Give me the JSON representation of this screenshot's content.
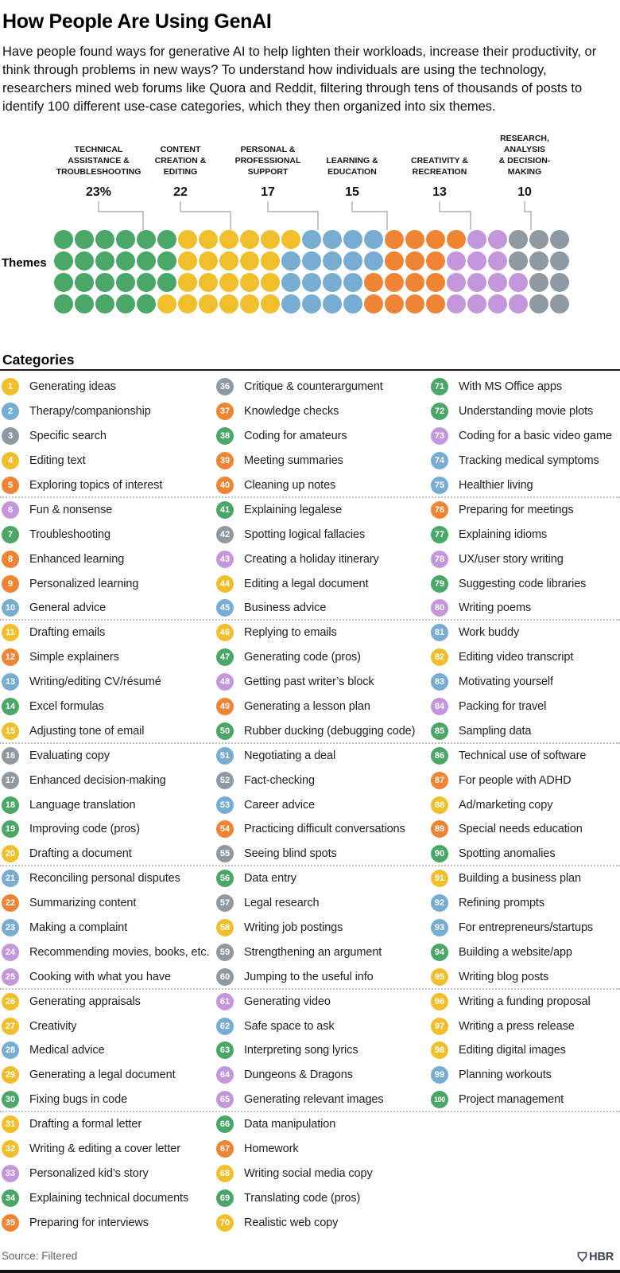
{
  "header": {
    "title": "How People Are Using GenAI",
    "intro": "Have people found ways for generative AI to help lighten their workloads, increase their productivity, or think through problems in new ways? To understand how individuals are using the technology, researchers mined web forums like Quora and Reddit, filtering through tens of thousands of posts to identify 100 different use-case categories, which they then organized into six themes."
  },
  "chart_data": {
    "type": "pie",
    "representation": "100-unit waffle dot grid (4 rows x 25 columns), one dot per use-case category",
    "title": "How People Are Using GenAI",
    "grid_label": "Themes",
    "unit_total": 100,
    "themes": [
      {
        "name": "Technical Assistance & Troubleshooting",
        "lines": [
          "TECHNICAL",
          "ASSISTANCE &",
          "TROUBLESHOOTING"
        ],
        "value": 23,
        "value_label": "23%",
        "color": "#4AA768",
        "color_key": "g"
      },
      {
        "name": "Content Creation & Editing",
        "lines": [
          "CONTENT",
          "CREATION &",
          "EDITING"
        ],
        "value": 22,
        "value_label": "22",
        "color": "#F2BF2C",
        "color_key": "y"
      },
      {
        "name": "Personal & Professional Support",
        "lines": [
          "PERSONAL &",
          "PROFESSIONAL",
          "SUPPORT"
        ],
        "value": 17,
        "value_label": "17",
        "color": "#77ADD3",
        "color_key": "b"
      },
      {
        "name": "Learning & Education",
        "lines": [
          "LEARNING &",
          "EDUCATION"
        ],
        "value": 15,
        "value_label": "15",
        "color": "#EE8434",
        "color_key": "o"
      },
      {
        "name": "Creativity & Recreation",
        "lines": [
          "CREATIVITY &",
          "RECREATION"
        ],
        "value": 13,
        "value_label": "13",
        "color": "#C496DB",
        "color_key": "p"
      },
      {
        "name": "Research, Analysis & Decision-Making",
        "lines": [
          "RESEARCH,",
          "ANALYSIS",
          "& DECISION-",
          "MAKING"
        ],
        "value": 10,
        "value_label": "10",
        "color": "#8F99A1",
        "color_key": "s"
      }
    ],
    "dot_rows": [
      "ggggggyyyyyybbbbooooppsss",
      "ggggggyyyyybbbbbooopppsss",
      "ggggggyyyyybbbbooooppppss",
      "gggggyyyyyybbbbooooppppss"
    ]
  },
  "categories_section": {
    "heading": "Categories",
    "column_sizes": [
      35,
      35,
      30
    ],
    "items": [
      {
        "n": 1,
        "label": "Generating ideas",
        "k": "y"
      },
      {
        "n": 2,
        "label": "Therapy/companionship",
        "k": "b"
      },
      {
        "n": 3,
        "label": "Specific search",
        "k": "s"
      },
      {
        "n": 4,
        "label": "Editing text",
        "k": "y"
      },
      {
        "n": 5,
        "label": "Exploring topics of interest",
        "k": "o"
      },
      {
        "n": 6,
        "label": "Fun & nonsense",
        "k": "p"
      },
      {
        "n": 7,
        "label": "Troubleshooting",
        "k": "g"
      },
      {
        "n": 8,
        "label": "Enhanced learning",
        "k": "o"
      },
      {
        "n": 9,
        "label": "Personalized learning",
        "k": "o"
      },
      {
        "n": 10,
        "label": "General advice",
        "k": "b"
      },
      {
        "n": 11,
        "label": "Drafting emails",
        "k": "y"
      },
      {
        "n": 12,
        "label": "Simple explainers",
        "k": "o"
      },
      {
        "n": 13,
        "label": "Writing/editing CV/résumé",
        "k": "b"
      },
      {
        "n": 14,
        "label": "Excel formulas",
        "k": "g"
      },
      {
        "n": 15,
        "label": "Adjusting tone of email",
        "k": "y"
      },
      {
        "n": 16,
        "label": "Evaluating copy",
        "k": "s"
      },
      {
        "n": 17,
        "label": "Enhanced decision-making",
        "k": "s"
      },
      {
        "n": 18,
        "label": "Language translation",
        "k": "g"
      },
      {
        "n": 19,
        "label": "Improving code (pros)",
        "k": "g"
      },
      {
        "n": 20,
        "label": "Drafting a document",
        "k": "y"
      },
      {
        "n": 21,
        "label": "Reconciling personal disputes",
        "k": "b"
      },
      {
        "n": 22,
        "label": "Summarizing content",
        "k": "o"
      },
      {
        "n": 23,
        "label": "Making a complaint",
        "k": "b"
      },
      {
        "n": 24,
        "label": "Recommending movies, books, etc.",
        "k": "p"
      },
      {
        "n": 25,
        "label": "Cooking with what you have",
        "k": "p"
      },
      {
        "n": 26,
        "label": "Generating appraisals",
        "k": "y"
      },
      {
        "n": 27,
        "label": "Creativity",
        "k": "y"
      },
      {
        "n": 28,
        "label": "Medical advice",
        "k": "b"
      },
      {
        "n": 29,
        "label": "Generating a legal document",
        "k": "y"
      },
      {
        "n": 30,
        "label": "Fixing bugs in code",
        "k": "g"
      },
      {
        "n": 31,
        "label": "Drafting a formal letter",
        "k": "y"
      },
      {
        "n": 32,
        "label": "Writing & editing a cover letter",
        "k": "y"
      },
      {
        "n": 33,
        "label": "Personalized kid’s story",
        "k": "p"
      },
      {
        "n": 34,
        "label": "Explaining technical documents",
        "k": "g"
      },
      {
        "n": 35,
        "label": "Preparing for interviews",
        "k": "o"
      },
      {
        "n": 36,
        "label": "Critique & counterargument",
        "k": "s"
      },
      {
        "n": 37,
        "label": "Knowledge checks",
        "k": "o"
      },
      {
        "n": 38,
        "label": "Coding for amateurs",
        "k": "g"
      },
      {
        "n": 39,
        "label": "Meeting summaries",
        "k": "o"
      },
      {
        "n": 40,
        "label": "Cleaning up notes",
        "k": "o"
      },
      {
        "n": 41,
        "label": "Explaining legalese",
        "k": "g"
      },
      {
        "n": 42,
        "label": "Spotting logical fallacies",
        "k": "s"
      },
      {
        "n": 43,
        "label": "Creating a holiday itinerary",
        "k": "p"
      },
      {
        "n": 44,
        "label": "Editing a legal document",
        "k": "y"
      },
      {
        "n": 45,
        "label": "Business advice",
        "k": "b"
      },
      {
        "n": 46,
        "label": "Replying to emails",
        "k": "y"
      },
      {
        "n": 47,
        "label": "Generating code (pros)",
        "k": "g"
      },
      {
        "n": 48,
        "label": "Getting past writer’s block",
        "k": "p"
      },
      {
        "n": 49,
        "label": "Generating a lesson plan",
        "k": "o"
      },
      {
        "n": 50,
        "label": "Rubber ducking (debugging code)",
        "k": "g"
      },
      {
        "n": 51,
        "label": "Negotiating a deal",
        "k": "b"
      },
      {
        "n": 52,
        "label": "Fact-checking",
        "k": "s"
      },
      {
        "n": 53,
        "label": "Career advice",
        "k": "b"
      },
      {
        "n": 54,
        "label": "Practicing difficult conversations",
        "k": "o"
      },
      {
        "n": 55,
        "label": "Seeing blind spots",
        "k": "s"
      },
      {
        "n": 56,
        "label": "Data entry",
        "k": "g"
      },
      {
        "n": 57,
        "label": "Legal research",
        "k": "s"
      },
      {
        "n": 58,
        "label": "Writing job postings",
        "k": "y"
      },
      {
        "n": 59,
        "label": "Strengthening an argument",
        "k": "s"
      },
      {
        "n": 60,
        "label": "Jumping to the useful info",
        "k": "s"
      },
      {
        "n": 61,
        "label": "Generating video",
        "k": "p"
      },
      {
        "n": 62,
        "label": "Safe space to ask",
        "k": "b"
      },
      {
        "n": 63,
        "label": "Interpreting song lyrics",
        "k": "g"
      },
      {
        "n": 64,
        "label": "Dungeons & Dragons",
        "k": "p"
      },
      {
        "n": 65,
        "label": "Generating relevant images",
        "k": "p"
      },
      {
        "n": 66,
        "label": "Data manipulation",
        "k": "g"
      },
      {
        "n": 67,
        "label": "Homework",
        "k": "o"
      },
      {
        "n": 68,
        "label": "Writing social media copy",
        "k": "y"
      },
      {
        "n": 69,
        "label": "Translating code (pros)",
        "k": "g"
      },
      {
        "n": 70,
        "label": "Realistic web copy",
        "k": "y"
      },
      {
        "n": 71,
        "label": "With MS Office apps",
        "k": "g"
      },
      {
        "n": 72,
        "label": "Understanding movie plots",
        "k": "g"
      },
      {
        "n": 73,
        "label": "Coding for a basic video game",
        "k": "p"
      },
      {
        "n": 74,
        "label": "Tracking medical symptoms",
        "k": "b"
      },
      {
        "n": 75,
        "label": "Healthier living",
        "k": "b"
      },
      {
        "n": 76,
        "label": "Preparing for meetings",
        "k": "o"
      },
      {
        "n": 77,
        "label": "Explaining idioms",
        "k": "g"
      },
      {
        "n": 78,
        "label": "UX/user story writing",
        "k": "p"
      },
      {
        "n": 79,
        "label": "Suggesting code libraries",
        "k": "g"
      },
      {
        "n": 80,
        "label": "Writing poems",
        "k": "p"
      },
      {
        "n": 81,
        "label": "Work buddy",
        "k": "b"
      },
      {
        "n": 82,
        "label": "Editing video transcript",
        "k": "y"
      },
      {
        "n": 83,
        "label": "Motivating yourself",
        "k": "b"
      },
      {
        "n": 84,
        "label": "Packing for travel",
        "k": "p"
      },
      {
        "n": 85,
        "label": "Sampling data",
        "k": "g"
      },
      {
        "n": 86,
        "label": "Technical use of software",
        "k": "g"
      },
      {
        "n": 87,
        "label": "For people with ADHD",
        "k": "o"
      },
      {
        "n": 88,
        "label": "Ad/marketing copy",
        "k": "y"
      },
      {
        "n": 89,
        "label": "Special needs education",
        "k": "o"
      },
      {
        "n": 90,
        "label": "Spotting anomalies",
        "k": "g"
      },
      {
        "n": 91,
        "label": "Building a business plan",
        "k": "y"
      },
      {
        "n": 92,
        "label": "Refining prompts",
        "k": "b"
      },
      {
        "n": 93,
        "label": "For entrepreneurs/startups",
        "k": "b"
      },
      {
        "n": 94,
        "label": "Building a website/app",
        "k": "g"
      },
      {
        "n": 95,
        "label": "Writing blog posts",
        "k": "y"
      },
      {
        "n": 96,
        "label": "Writing a funding proposal",
        "k": "y"
      },
      {
        "n": 97,
        "label": "Writing a press release",
        "k": "y"
      },
      {
        "n": 98,
        "label": "Editing digital images",
        "k": "y"
      },
      {
        "n": 99,
        "label": "Planning workouts",
        "k": "b"
      },
      {
        "n": 100,
        "label": "Project management",
        "k": "g"
      }
    ]
  },
  "footer": {
    "source": "Source: Filtered",
    "brand": "HBR"
  }
}
